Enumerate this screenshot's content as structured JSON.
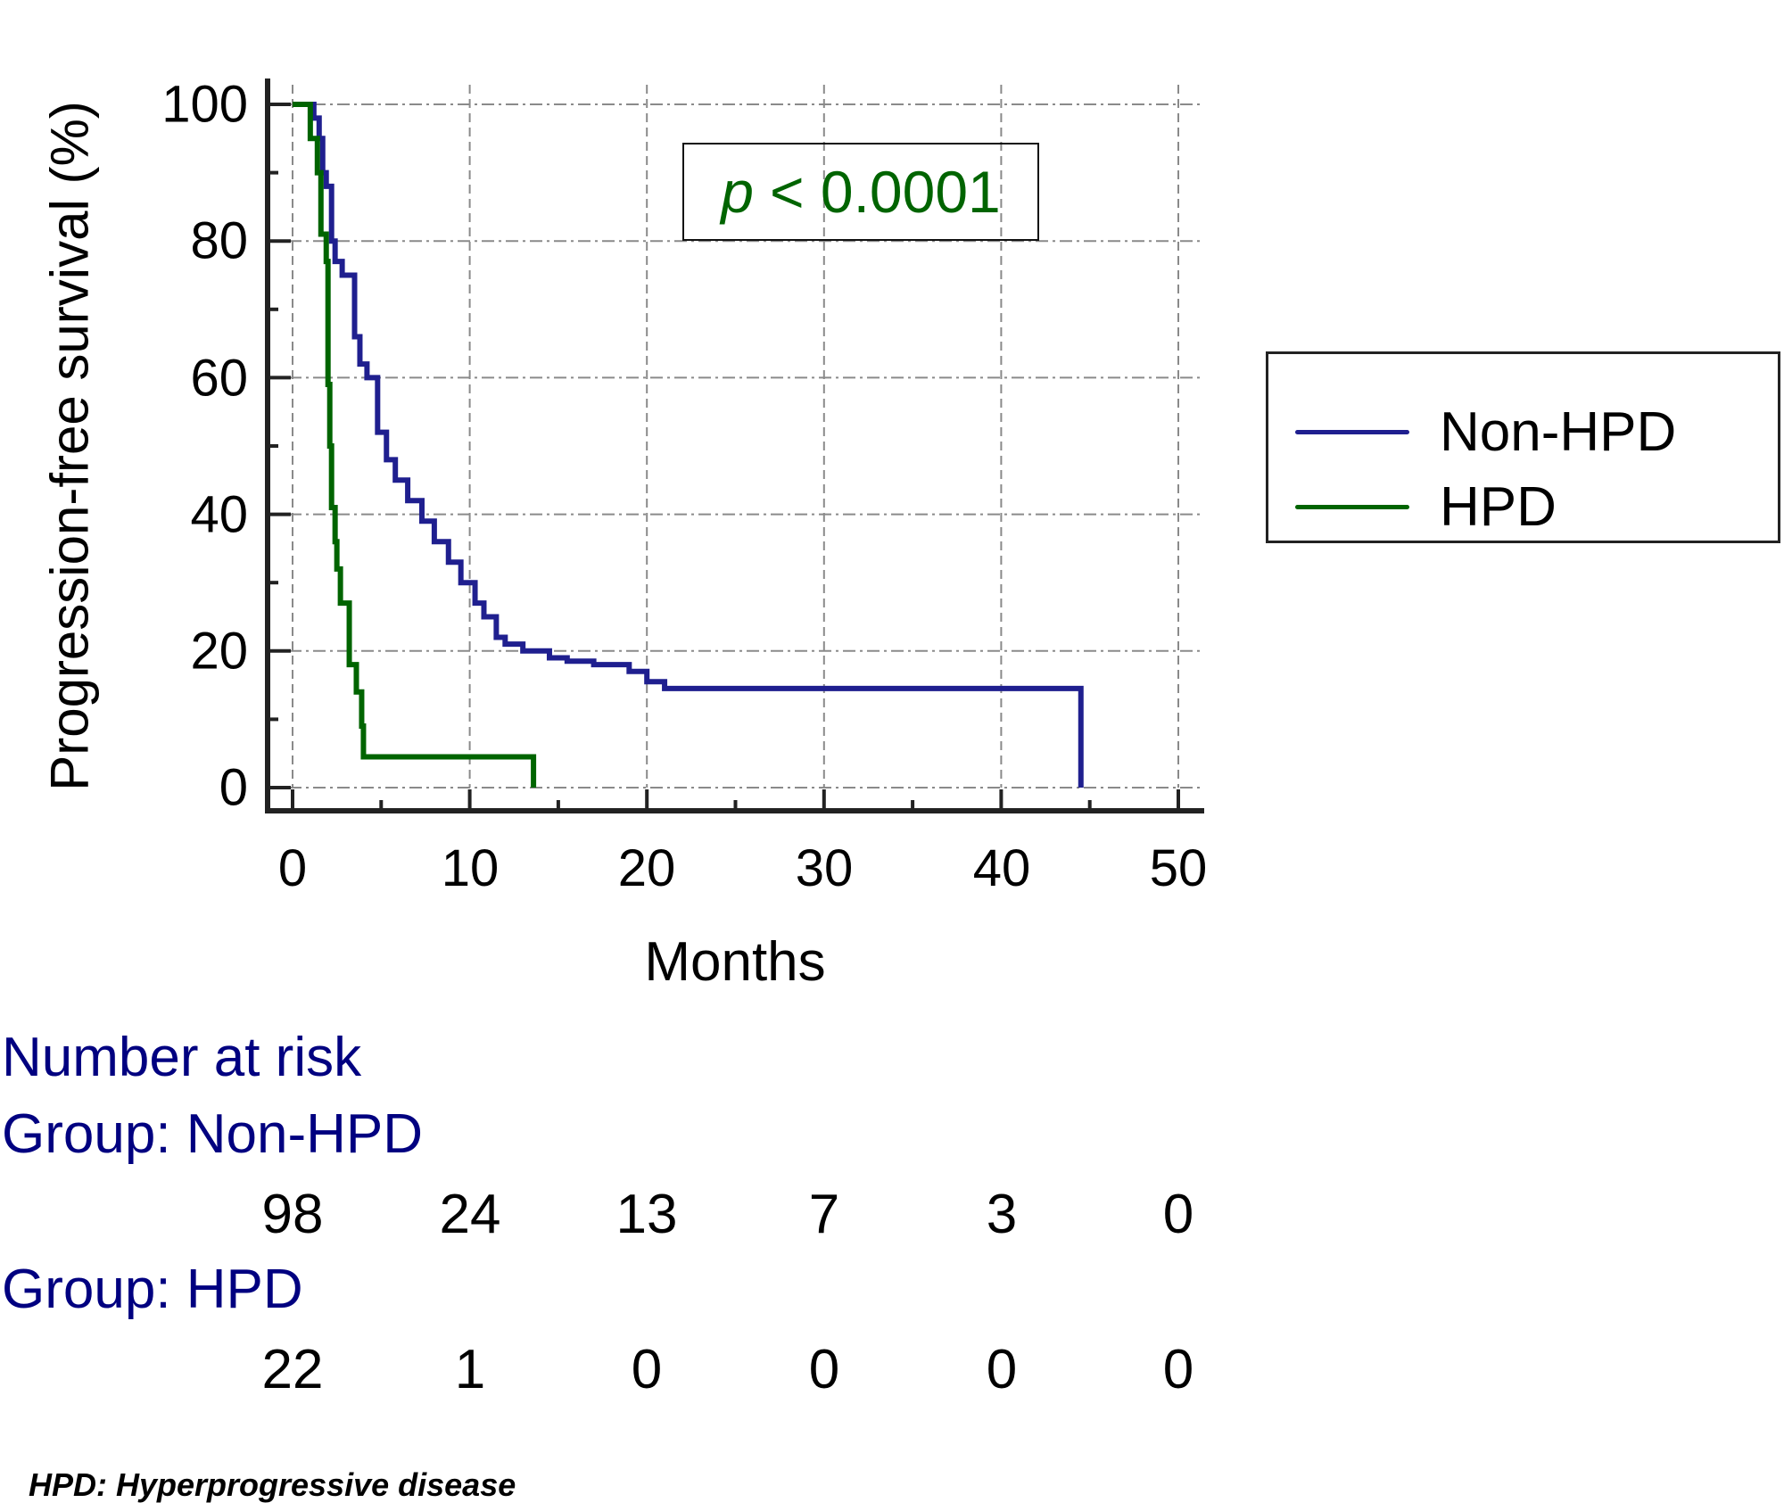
{
  "chart_data": {
    "type": "line",
    "subtype": "kaplan-meier step curve",
    "title": "",
    "xlabel": "Months",
    "ylabel": "Progression-free survival (%)",
    "xlim": [
      0,
      50
    ],
    "ylim": [
      0,
      100
    ],
    "x_ticks": [
      "0",
      "10",
      "20",
      "30",
      "40",
      "50"
    ],
    "y_ticks": [
      "0",
      "20",
      "40",
      "60",
      "80",
      "100"
    ],
    "grid": true,
    "legend_position": "right",
    "annotation": "p < 0.0001",
    "series": [
      {
        "name": "Non-HPD",
        "color": "#1f1f8f",
        "points": [
          [
            0,
            100
          ],
          [
            1.0,
            100
          ],
          [
            1.2,
            98
          ],
          [
            1.5,
            95
          ],
          [
            1.7,
            90
          ],
          [
            1.9,
            88
          ],
          [
            2.2,
            80
          ],
          [
            2.4,
            77
          ],
          [
            2.8,
            75
          ],
          [
            3.5,
            66
          ],
          [
            3.8,
            62
          ],
          [
            4.2,
            60
          ],
          [
            4.8,
            52
          ],
          [
            5.3,
            48
          ],
          [
            5.8,
            45
          ],
          [
            6.5,
            42
          ],
          [
            7.3,
            39
          ],
          [
            8.0,
            36
          ],
          [
            8.8,
            33
          ],
          [
            9.5,
            30
          ],
          [
            10.3,
            27
          ],
          [
            10.8,
            25
          ],
          [
            11.5,
            22
          ],
          [
            12.0,
            21
          ],
          [
            13.0,
            20
          ],
          [
            14.5,
            19
          ],
          [
            15.5,
            18.5
          ],
          [
            17.0,
            18
          ],
          [
            19.0,
            17
          ],
          [
            20.0,
            15.5
          ],
          [
            21.0,
            14.5
          ],
          [
            44.5,
            14.5
          ],
          [
            44.5,
            0
          ]
        ]
      },
      {
        "name": "HPD",
        "color": "#006400",
        "points": [
          [
            0,
            100
          ],
          [
            0.7,
            100
          ],
          [
            1.0,
            95
          ],
          [
            1.3,
            95
          ],
          [
            1.4,
            90
          ],
          [
            1.6,
            81
          ],
          [
            1.9,
            77
          ],
          [
            2.0,
            59
          ],
          [
            2.1,
            50
          ],
          [
            2.2,
            41
          ],
          [
            2.4,
            36
          ],
          [
            2.5,
            32
          ],
          [
            2.7,
            27
          ],
          [
            3.0,
            27
          ],
          [
            3.2,
            18
          ],
          [
            3.6,
            14
          ],
          [
            3.9,
            9
          ],
          [
            4.0,
            4.5
          ],
          [
            13.6,
            4.5
          ],
          [
            13.6,
            0
          ]
        ]
      }
    ],
    "number_at_risk": {
      "times": [
        0,
        10,
        20,
        30,
        40,
        50
      ],
      "Non-HPD": [
        98,
        24,
        13,
        7,
        3,
        0
      ],
      "HPD": [
        22,
        1,
        0,
        0,
        0,
        0
      ]
    }
  },
  "axes": {
    "ylabel": "Progression-free survival (%)",
    "xlabel": "Months",
    "y_ticks": [
      "100",
      "80",
      "60",
      "40",
      "20",
      "0"
    ],
    "x_ticks": [
      "0",
      "10",
      "20",
      "30",
      "40",
      "50"
    ]
  },
  "annotation": {
    "p_symbol": "p",
    "p_text": "< 0.0001"
  },
  "legend": {
    "items": [
      {
        "label": "Non-HPD",
        "color": "#1f1f8f"
      },
      {
        "label": "HPD",
        "color": "#006400"
      }
    ]
  },
  "risk_table": {
    "title": "Number at risk",
    "groups": [
      {
        "label": "Group: Non-HPD",
        "values": [
          "98",
          "24",
          "13",
          "7",
          "3",
          "0"
        ]
      },
      {
        "label": "Group: HPD",
        "values": [
          "22",
          "1",
          "0",
          "0",
          "0",
          "0"
        ]
      }
    ]
  },
  "footnote": "HPD: Hyperprogressive disease"
}
